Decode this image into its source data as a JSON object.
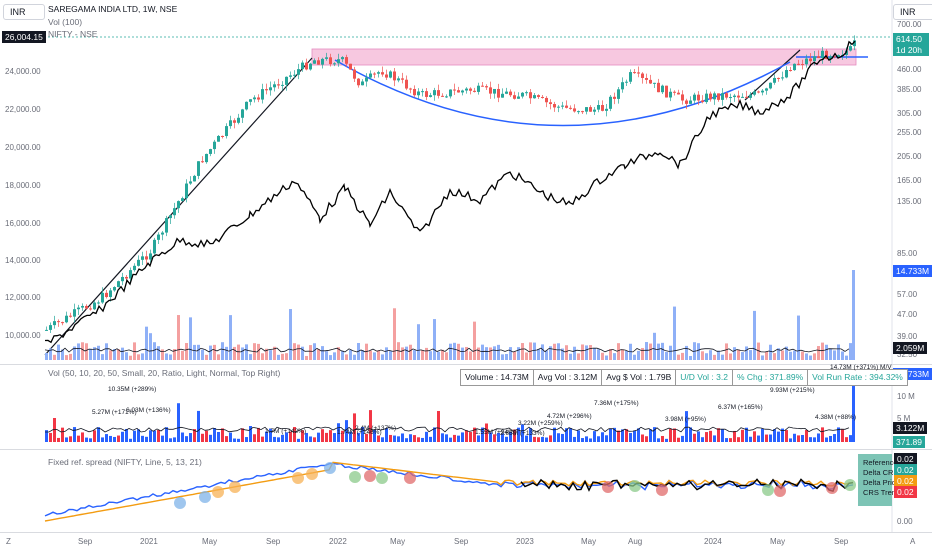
{
  "top_left_currency": "INR",
  "top_right_currency": "INR",
  "legend": {
    "title": "SAREGAMA INDIA LTD, 1W, NSE",
    "line2": "Vol (100)",
    "line3": "NIFTY - NSE"
  },
  "price_left_badge": "26,004.15",
  "price_right_badge": "614.50",
  "price_right_countdown": "1d 20h",
  "vol_right_badge_main": "14.733M",
  "vol_right_badge_ma": "2.059M",
  "vol_right_badge_2": "14.733M",
  "vol_right_badge_3": "3.122M",
  "vol_right_badge_4": "371.89",
  "left_axis": [
    "24,000.00",
    "22,000.00",
    "20,000.00",
    "18,000.00",
    "16,000.00",
    "14,000.00",
    "12,000.00",
    "10,000.00"
  ],
  "right_axis": [
    "700.00",
    "460.00",
    "385.00",
    "305.00",
    "255.00",
    "205.00",
    "165.00",
    "135.00",
    "85.00",
    "57.00",
    "47.00",
    "39.00",
    "32.50"
  ],
  "vol_pane": {
    "legend": "Vol (50, 10, 20, 50, Small, 20, Ratio, Light, Normal, Top Right)",
    "axis": [
      "10 M",
      "5 M"
    ],
    "stats": [
      "Volume : 14.73M",
      "Avg Vol : 3.12M",
      "Avg $ Vol : 1.79B",
      "U/D Vol : 3.2",
      "% Chg : 371.89%",
      "Vol Run Rate : 394.32%"
    ],
    "annotations": [
      "10.35M (+289%)",
      "5.27M (+171%)",
      "6.03M (+136%)",
      "1.7M (+142%)",
      "1.74M (+146%)",
      "2.4M (+137%)",
      "1.55M (+94%)",
      "2.65M (+133%)",
      "3.22M (+259%)",
      "4.72M (+296%)",
      "7.36M (+175%)",
      "3.98M (+95%)",
      "6.37M (+165%)",
      "9.93M (+215%)",
      "4.38M (+88%)",
      "14.73M (+371%) M/V"
    ]
  },
  "spread_pane": {
    "legend": "Fixed ref. spread (NIFTY, Line, 5, 13, 21)",
    "axis": [
      "0.00"
    ],
    "labels": [
      "Reference",
      "Delta CRS",
      "Delta Price",
      "CRS Trend"
    ],
    "values": [
      "0.02",
      "0.02",
      "0.02",
      "0.02"
    ]
  },
  "time_axis": [
    "Sep",
    "2021",
    "May",
    "Sep",
    "2022",
    "May",
    "Sep",
    "2023",
    "May",
    "Aug",
    "2024",
    "May",
    "Sep"
  ],
  "corner_left": "Z",
  "corner_right": "A",
  "colors": {
    "up": "#26a69a",
    "down": "#ef5350",
    "vol_up": "#2962ff",
    "vol_down": "#f23645",
    "arc": "#2962ff",
    "rs": "#000000"
  }
}
